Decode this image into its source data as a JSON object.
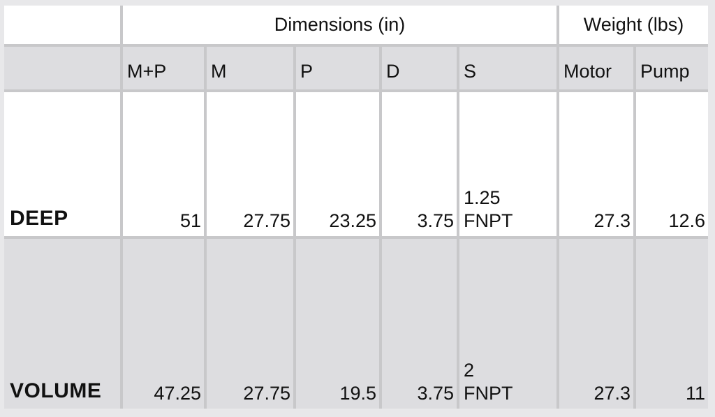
{
  "header": {
    "groups": [
      "Dimensions (in)",
      "Weight (lbs)"
    ],
    "columns": [
      "M+P",
      "M",
      "P",
      "D",
      "S",
      "Motor",
      "Pump"
    ]
  },
  "rows": [
    {
      "label": "DEEP",
      "cells": [
        51,
        27.75,
        23.25,
        3.75,
        "1.25 FNPT",
        27.3,
        12.6
      ]
    },
    {
      "label": "VOLUME",
      "cells": [
        47.25,
        27.75,
        19.5,
        3.75,
        "2 FNPT",
        27.3,
        11
      ]
    }
  ]
}
